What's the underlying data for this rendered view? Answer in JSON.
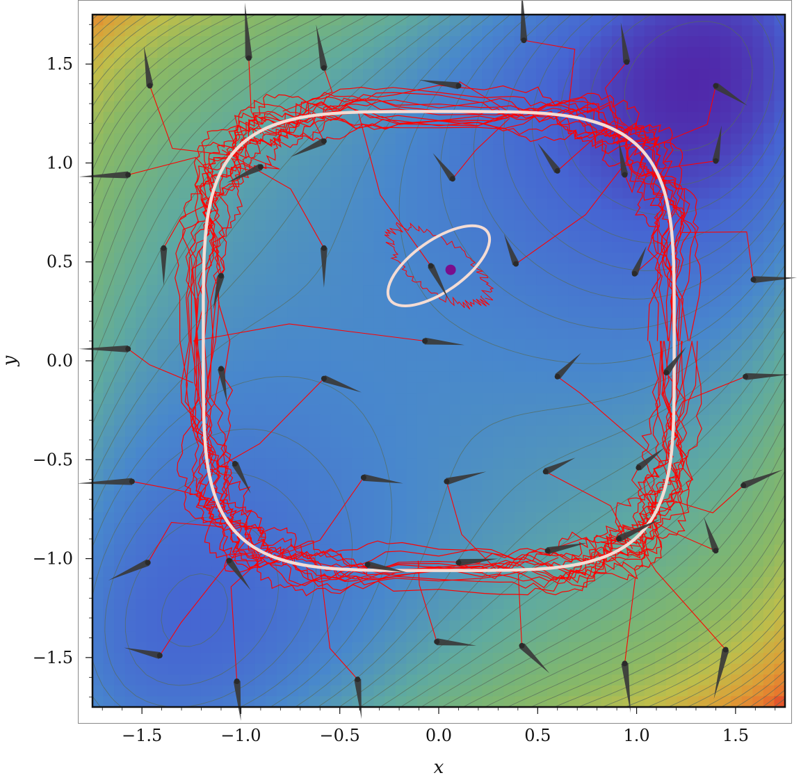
{
  "chart_data": {
    "type": "contour",
    "title": "",
    "xlabel": "x",
    "ylabel": "y",
    "xlim": [
      -1.75,
      1.75
    ],
    "ylim": [
      -1.75,
      1.75
    ],
    "xticks": [
      "-1.5",
      "-1.0",
      "-0.5",
      "0.0",
      "0.5",
      "1.0",
      "1.5"
    ],
    "xtick_values": [
      -1.5,
      -1.0,
      -0.5,
      0.0,
      0.5,
      1.0,
      1.5
    ],
    "yticks": [
      "1.5",
      "1.0",
      "0.5",
      "0.0",
      "-0.5",
      "-1.0",
      "-1.5"
    ],
    "ytick_values": [
      1.5,
      1.0,
      0.5,
      0.0,
      -0.5,
      -1.0,
      -1.5
    ],
    "colors": {
      "contour_line": "#556b5a",
      "trajectory": "#ff0000",
      "limit_cycle": "#f4dcd4",
      "arrow": "#3a3a3a",
      "fixed_point": "#7a0e8c",
      "frame": "#111111"
    },
    "fixed_point": {
      "x": 0.06,
      "y": 0.46
    },
    "limit_cycle_outer": {
      "cx": 0.0,
      "cy": 0.1,
      "halfwidth": 1.19,
      "halfheight": 1.16,
      "cornerness": 4.2
    },
    "limit_cycle_inner": {
      "cx": 0.0,
      "cy": 0.48,
      "rx": 0.3,
      "ry": 0.13,
      "angle_deg": -35
    },
    "start_points": [
      {
        "x": -1.46,
        "y": 1.39,
        "dx": -0.03,
        "dy": 0.2
      },
      {
        "x": -0.96,
        "y": 1.53,
        "dx": -0.02,
        "dy": 0.28
      },
      {
        "x": -0.58,
        "y": 1.48,
        "dx": -0.04,
        "dy": 0.22
      },
      {
        "x": 0.43,
        "y": 1.62,
        "dx": -0.01,
        "dy": 0.25
      },
      {
        "x": 0.1,
        "y": 1.39,
        "dx": -0.2,
        "dy": 0.03
      },
      {
        "x": 0.95,
        "y": 1.51,
        "dx": -0.03,
        "dy": 0.2
      },
      {
        "x": 1.4,
        "y": 1.39,
        "dx": 0.16,
        "dy": -0.1
      },
      {
        "x": -1.57,
        "y": 0.94,
        "dx": -0.25,
        "dy": -0.01
      },
      {
        "x": -0.58,
        "y": 1.11,
        "dx": -0.17,
        "dy": -0.08
      },
      {
        "x": -0.9,
        "y": 0.98,
        "dx": -0.17,
        "dy": -0.08
      },
      {
        "x": 0.07,
        "y": 0.92,
        "dx": -0.1,
        "dy": 0.13
      },
      {
        "x": 0.6,
        "y": 0.96,
        "dx": -0.1,
        "dy": 0.14
      },
      {
        "x": 0.94,
        "y": 0.94,
        "dx": -0.03,
        "dy": 0.17
      },
      {
        "x": 1.4,
        "y": 1.01,
        "dx": 0.03,
        "dy": 0.18
      },
      {
        "x": -1.39,
        "y": 0.57,
        "dx": 0.0,
        "dy": -0.19
      },
      {
        "x": -0.58,
        "y": 0.57,
        "dx": 0.0,
        "dy": -0.2
      },
      {
        "x": -1.1,
        "y": 0.43,
        "dx": -0.04,
        "dy": -0.17
      },
      {
        "x": -0.04,
        "y": 0.48,
        "dx": 0.09,
        "dy": -0.17
      },
      {
        "x": 0.39,
        "y": 0.49,
        "dx": -0.06,
        "dy": 0.15
      },
      {
        "x": 0.99,
        "y": 0.44,
        "dx": 0.06,
        "dy": 0.14
      },
      {
        "x": 1.59,
        "y": 0.41,
        "dx": 0.22,
        "dy": 0.01
      },
      {
        "x": -1.57,
        "y": 0.06,
        "dx": -0.25,
        "dy": 0.0
      },
      {
        "x": -0.07,
        "y": 0.1,
        "dx": 0.2,
        "dy": -0.02
      },
      {
        "x": -0.58,
        "y": -0.09,
        "dx": 0.19,
        "dy": -0.07
      },
      {
        "x": -1.1,
        "y": -0.04,
        "dx": 0.03,
        "dy": -0.17
      },
      {
        "x": 0.6,
        "y": -0.08,
        "dx": 0.12,
        "dy": 0.12
      },
      {
        "x": 1.15,
        "y": -0.06,
        "dx": 0.1,
        "dy": 0.13
      },
      {
        "x": 1.55,
        "y": -0.08,
        "dx": 0.22,
        "dy": 0.01
      },
      {
        "x": -1.55,
        "y": -0.61,
        "dx": -0.28,
        "dy": -0.01
      },
      {
        "x": -1.03,
        "y": -0.52,
        "dx": 0.08,
        "dy": -0.15
      },
      {
        "x": -0.38,
        "y": -0.59,
        "dx": 0.2,
        "dy": -0.03
      },
      {
        "x": 0.04,
        "y": -0.61,
        "dx": 0.2,
        "dy": 0.05
      },
      {
        "x": 0.54,
        "y": -0.56,
        "dx": 0.15,
        "dy": 0.07
      },
      {
        "x": 1.01,
        "y": -0.54,
        "dx": 0.13,
        "dy": 0.1
      },
      {
        "x": 1.54,
        "y": -0.63,
        "dx": 0.2,
        "dy": 0.08
      },
      {
        "x": -1.47,
        "y": -1.02,
        "dx": -0.2,
        "dy": -0.09
      },
      {
        "x": -1.06,
        "y": -1.01,
        "dx": 0.11,
        "dy": -0.15
      },
      {
        "x": -0.36,
        "y": -1.03,
        "dx": 0.2,
        "dy": -0.04
      },
      {
        "x": 0.1,
        "y": -1.02,
        "dx": 0.2,
        "dy": 0.02
      },
      {
        "x": 0.55,
        "y": -0.96,
        "dx": 0.2,
        "dy": 0.04
      },
      {
        "x": 0.91,
        "y": -0.9,
        "dx": 0.21,
        "dy": 0.1
      },
      {
        "x": 1.4,
        "y": -0.96,
        "dx": -0.06,
        "dy": 0.17
      },
      {
        "x": -1.41,
        "y": -1.49,
        "dx": -0.18,
        "dy": 0.04
      },
      {
        "x": -0.01,
        "y": -1.42,
        "dx": 0.2,
        "dy": -0.02
      },
      {
        "x": 0.42,
        "y": -1.44,
        "dx": 0.14,
        "dy": -0.14
      },
      {
        "x": 0.94,
        "y": -1.53,
        "dx": 0.03,
        "dy": -0.25
      },
      {
        "x": 1.45,
        "y": -1.46,
        "dx": -0.06,
        "dy": -0.25
      },
      {
        "x": -1.02,
        "y": -1.62,
        "dx": 0.02,
        "dy": -0.2
      },
      {
        "x": -0.41,
        "y": -1.61,
        "dx": 0.02,
        "dy": -0.2
      }
    ]
  }
}
